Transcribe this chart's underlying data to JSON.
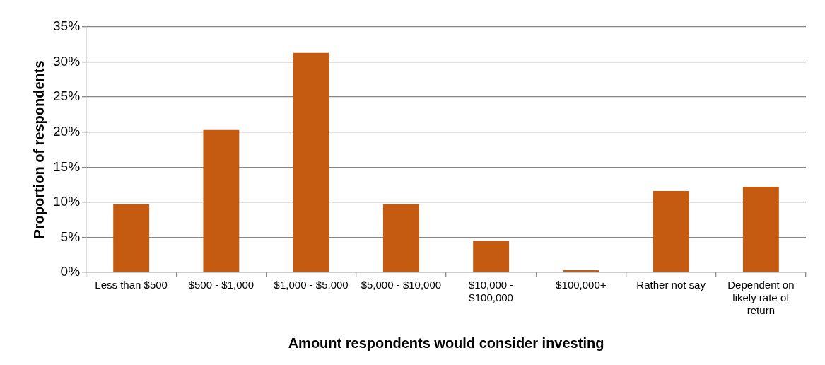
{
  "chart_data": {
    "type": "bar",
    "xlabel": "Amount respondents would consider investing",
    "ylabel": "Proportion of respondents",
    "categories": [
      "Less than $500",
      "$500 - $1,000",
      "$1,000 - $5,000",
      "$5,000 - $10,000",
      "$10,000 - $100,000",
      "$100,000+",
      "Rather not say",
      "Dependent on likely rate of return"
    ],
    "values": [
      9.7,
      20.3,
      31.3,
      9.7,
      4.5,
      0.3,
      11.6,
      12.2
    ],
    "color": "#c55a11",
    "ylim": [
      0,
      35
    ],
    "yticks": [
      {
        "value": 0,
        "label": "0%"
      },
      {
        "value": 5,
        "label": "5%"
      },
      {
        "value": 10,
        "label": "10%"
      },
      {
        "value": 15,
        "label": "15%"
      },
      {
        "value": 20,
        "label": "20%"
      },
      {
        "value": 25,
        "label": "25%"
      },
      {
        "value": 30,
        "label": "30%"
      },
      {
        "value": 35,
        "label": "35%"
      }
    ],
    "grid": "y",
    "legend": false
  }
}
